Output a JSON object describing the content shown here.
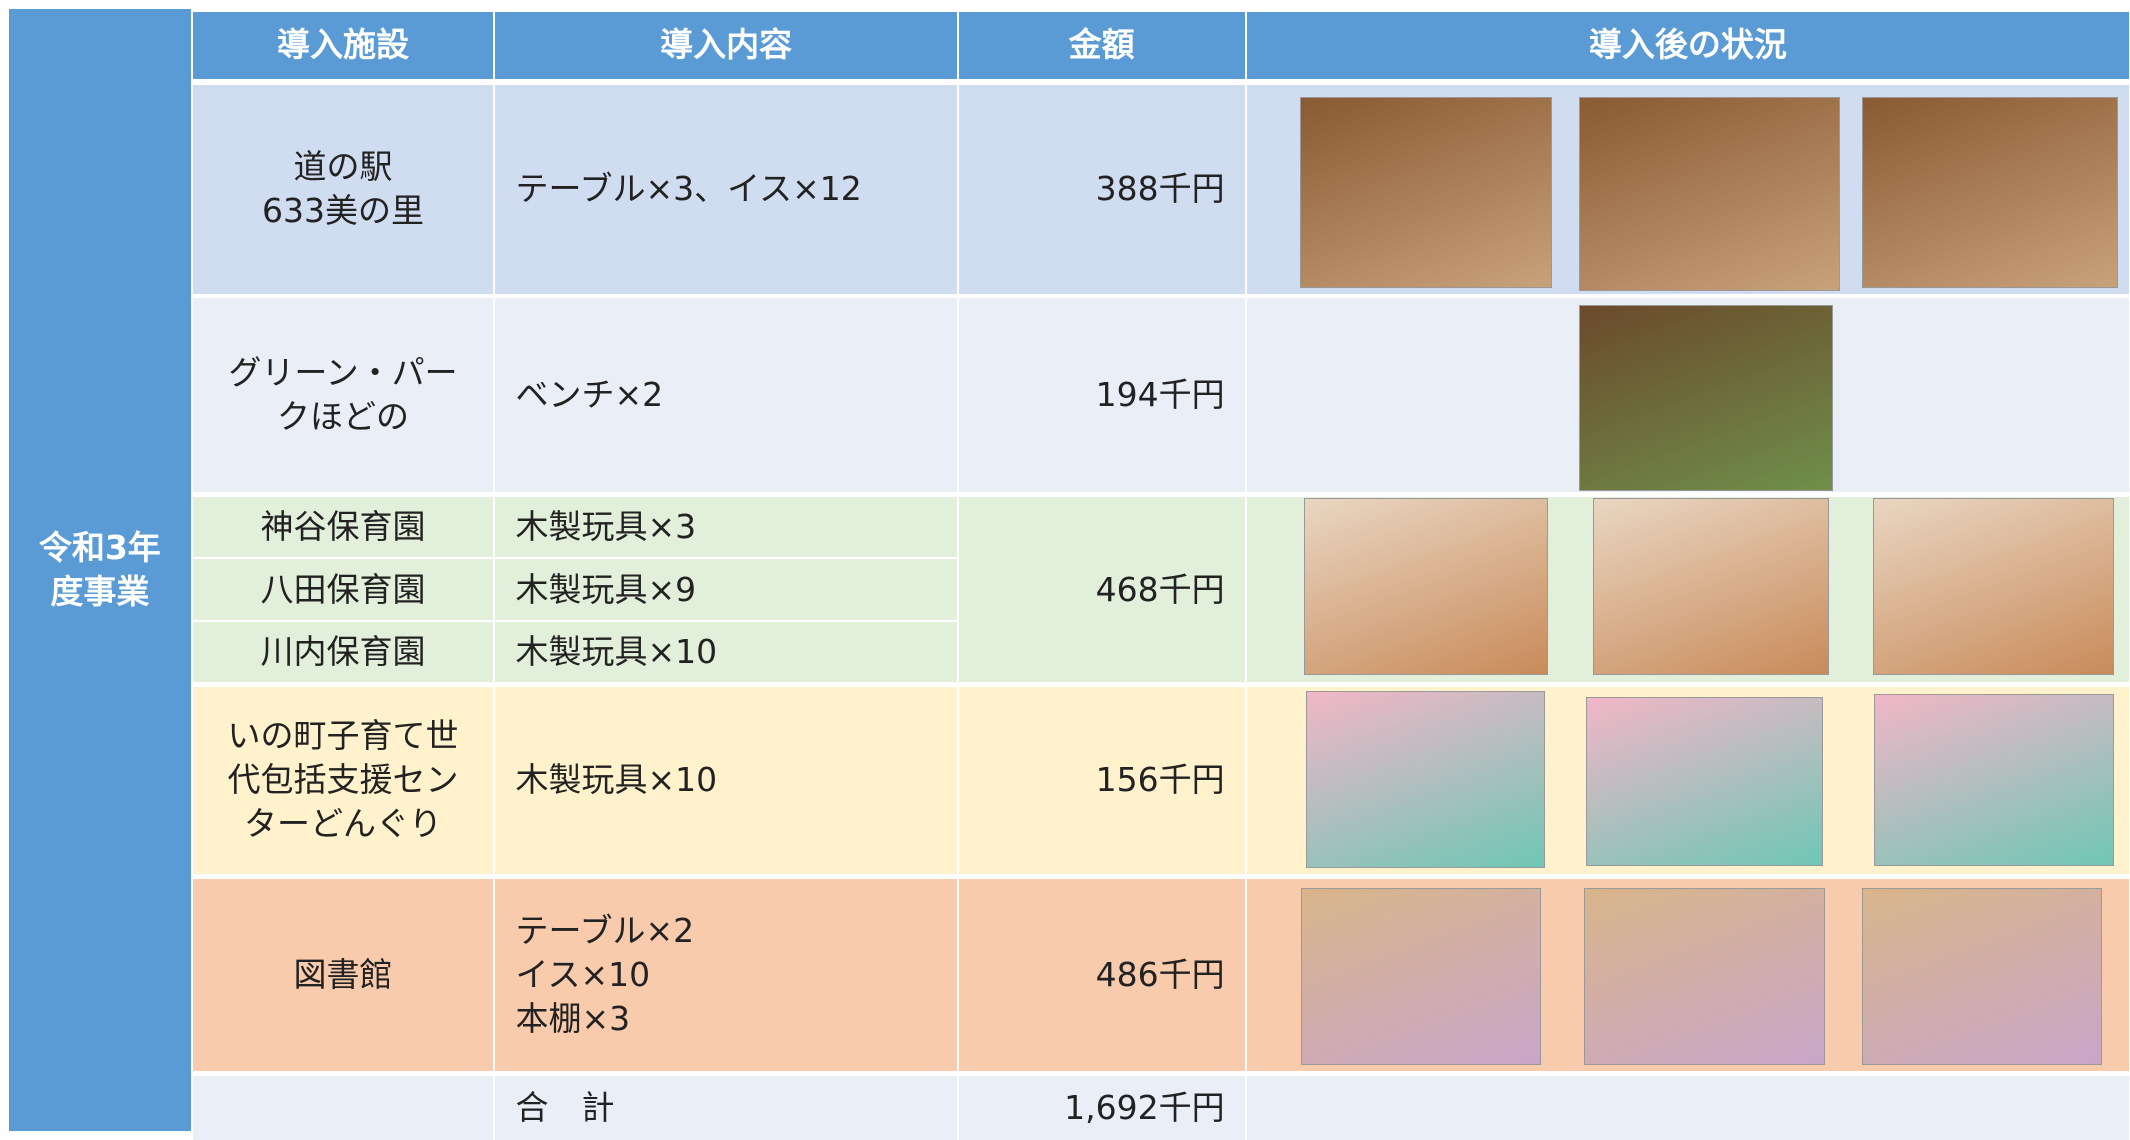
{
  "side_label": [
    "令和3年",
    "度事業"
  ],
  "header": [
    "導入施設",
    "導入内容",
    "金額",
    "導入後の状況"
  ],
  "rows": [
    {
      "facility": [
        "道の駅",
        "633美の里"
      ],
      "content": [
        "テーブル×3、イス×12"
      ],
      "amount": "388千円"
    },
    {
      "facility": [
        "グリーン・パー",
        "クほどの"
      ],
      "content": [
        "ベンチ×2"
      ],
      "amount": "194千円"
    },
    {
      "facility": [
        "神谷保育園",
        "八田保育園",
        "川内保育園"
      ],
      "content": [
        "木製玩具×3",
        "木製玩具×9",
        "木製玩具×10"
      ],
      "amount": "468千円"
    },
    {
      "facility": [
        "いの町子育て世",
        "代包括支援セン",
        "ターどんぐり"
      ],
      "content": [
        "木製玩具×10"
      ],
      "amount": "156千円"
    },
    {
      "facility": [
        "図書館"
      ],
      "content": [
        "テーブル×2",
        "イス×10",
        "本棚×3"
      ],
      "amount": "486千円"
    }
  ],
  "total": {
    "label": "合　計",
    "amount": "1,692千円"
  }
}
